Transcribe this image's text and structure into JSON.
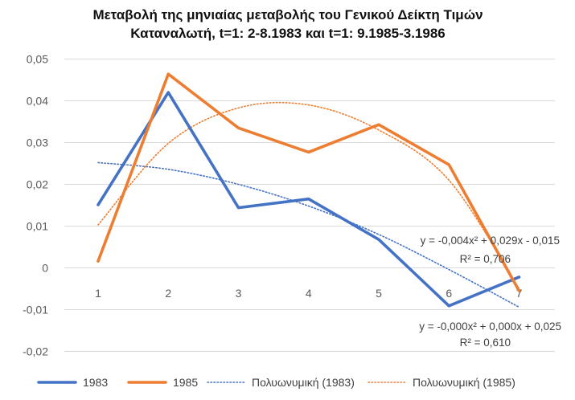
{
  "chart_data": {
    "type": "line",
    "title_lines": [
      "Μεταβολή της μηνιαίας μεταβολής του Γενικού Δείκτη Τιμών",
      "Καταναλωτή, t=1: 2-8.1983 και t=1: 9.1985-3.1986"
    ],
    "x": [
      1,
      2,
      3,
      4,
      5,
      6,
      7
    ],
    "x_tick_labels": [
      "1",
      "2",
      "3",
      "4",
      "5",
      "6",
      "7"
    ],
    "ylim": [
      -0.02,
      0.05
    ],
    "y_ticks": [
      -0.02,
      -0.01,
      0,
      0.01,
      0.02,
      0.03,
      0.04,
      0.05
    ],
    "y_tick_labels": [
      "-0,02",
      "-0,01",
      "0",
      "0,01",
      "0,02",
      "0,03",
      "0,04",
      "0,05"
    ],
    "grid": true,
    "legend_position": "bottom",
    "series": [
      {
        "name": "1983",
        "color": "#4472C4",
        "style": "solid",
        "values": [
          0.0151,
          0.042,
          0.0144,
          0.0165,
          0.0068,
          -0.0091,
          -0.0022
        ]
      },
      {
        "name": "1985",
        "color": "#ED7D31",
        "style": "solid",
        "values": [
          0.0016,
          0.0464,
          0.0335,
          0.0277,
          0.0343,
          0.0247,
          -0.0055
        ]
      },
      {
        "name": "Πολυωνυμική (1983)",
        "color": "#4472C4",
        "style": "dotted",
        "values": [
          0.0252,
          0.0236,
          0.02,
          0.0148,
          0.008,
          -0.0004,
          -0.0094
        ]
      },
      {
        "name": "Πολυωνυμική (1985)",
        "color": "#ED7D31",
        "style": "dotted",
        "values": [
          0.0103,
          0.0298,
          0.0383,
          0.039,
          0.033,
          0.021,
          -0.005
        ]
      }
    ],
    "annotations": [
      {
        "line1": "y = -0,004x² + 0,029x - 0,015",
        "line2": "R² = 0,706"
      },
      {
        "line1": "y = -0,000x² + 0,000x + 0,025",
        "line2": "R² = 0,610"
      }
    ]
  }
}
